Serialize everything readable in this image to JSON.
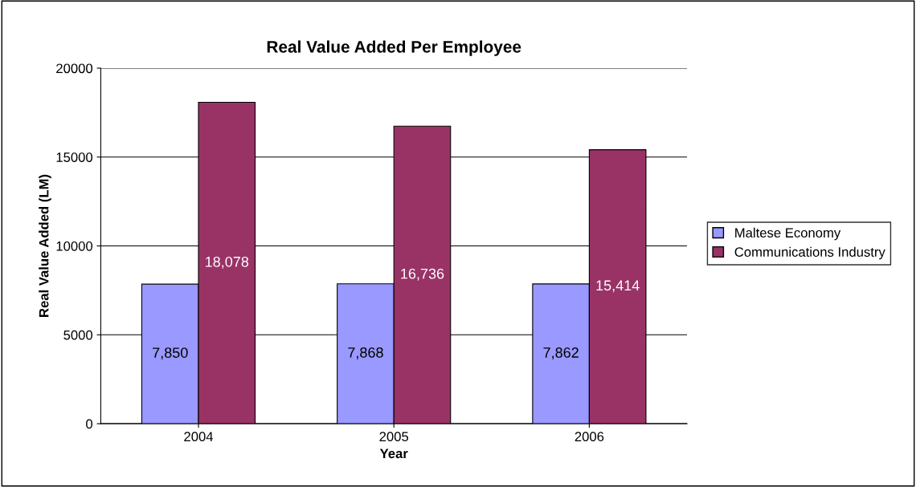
{
  "chart_data": {
    "type": "bar",
    "title": "Real Value Added Per Employee",
    "xlabel": "Year",
    "ylabel": "Real Value Added (LM)",
    "categories": [
      "2004",
      "2005",
      "2006"
    ],
    "series": [
      {
        "name": "Maltese Economy",
        "color": "#9999ff",
        "values": [
          7850,
          7868,
          7862
        ],
        "value_labels": [
          "7,850",
          "7,868",
          "7,862"
        ]
      },
      {
        "name": "Communications Industry",
        "color": "#993366",
        "values": [
          18078,
          16736,
          15414
        ],
        "value_labels": [
          "18,078",
          "16,736",
          "15,414"
        ]
      }
    ],
    "ylim": [
      0,
      20000
    ],
    "yticks": [
      0,
      5000,
      10000,
      15000,
      20000
    ],
    "grid": "y",
    "legend": "right"
  }
}
